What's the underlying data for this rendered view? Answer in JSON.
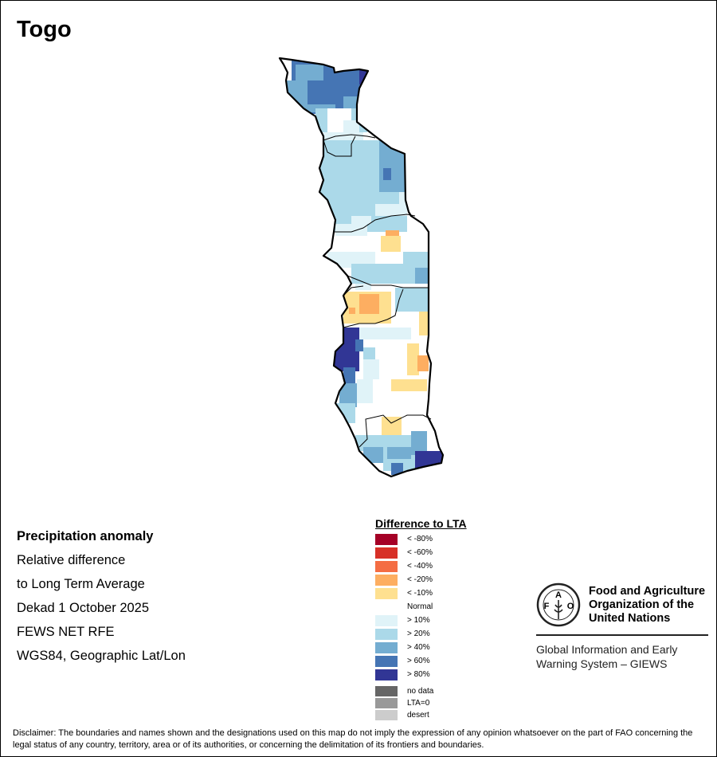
{
  "title": "Togo",
  "info": {
    "heading": "Precipitation anomaly",
    "lines": [
      "Relative difference",
      "to Long Term Average",
      "Dekad 1 October 2025",
      "FEWS NET RFE",
      "WGS84, Geographic Lat/Lon"
    ]
  },
  "legend": {
    "title": "Difference to LTA",
    "items": [
      {
        "label": "< -80%",
        "color": "#a50026"
      },
      {
        "label": "< -60%",
        "color": "#d73027"
      },
      {
        "label": "< -40%",
        "color": "#f46d43"
      },
      {
        "label": "< -20%",
        "color": "#fdae61"
      },
      {
        "label": "< -10%",
        "color": "#fee090"
      },
      {
        "label": "Normal",
        "color": "#ffffff"
      },
      {
        "label": "> 10%",
        "color": "#e0f3f8"
      },
      {
        "label": "> 20%",
        "color": "#abd9e9"
      },
      {
        "label": "> 40%",
        "color": "#74add1"
      },
      {
        "label": "> 60%",
        "color": "#4575b4"
      },
      {
        "label": "> 80%",
        "color": "#313695"
      }
    ],
    "extra": [
      {
        "label": "no data",
        "color": "#666666"
      },
      {
        "label": "LTA=0",
        "color": "#999999"
      },
      {
        "label": "desert",
        "color": "#cccccc"
      }
    ]
  },
  "logo": {
    "org_lines": [
      "Food and Agriculture",
      "Organization of the",
      "United Nations"
    ],
    "emblem_text": "FAO FIAT PANIS",
    "giews_lines": [
      "Global Information and Early",
      "Warning System – GIEWS"
    ]
  },
  "disclaimer": "Disclaimer: The boundaries and names shown and the designations used on this map do not imply the expression of any opinion whatsoever on the part of FAO concerning the legal status of any country, territory, area or of its authorities, or concerning the delimitation of its frontiers and boundaries."
}
